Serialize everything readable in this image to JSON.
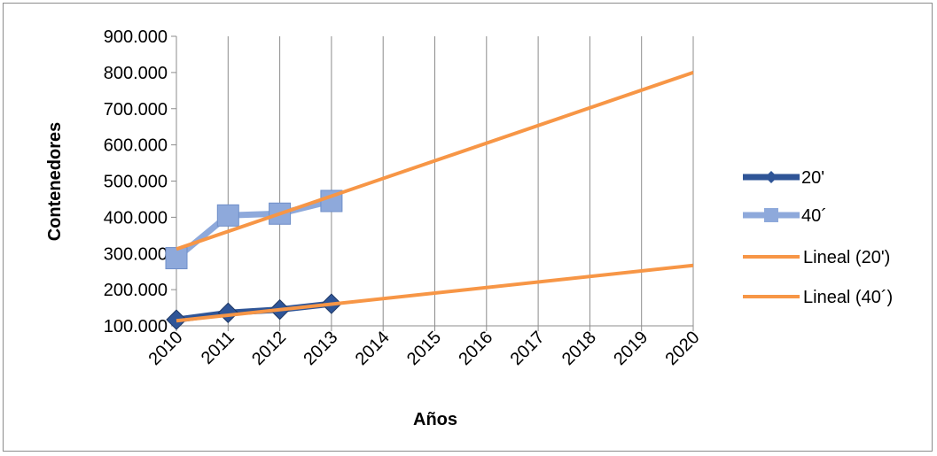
{
  "chart_data": {
    "type": "line",
    "xlabel": "Años",
    "ylabel": "Contenedores",
    "x_categories": [
      "2010",
      "2011",
      "2012",
      "2013",
      "2014",
      "2015",
      "2016",
      "2017",
      "2018",
      "2019",
      "2020"
    ],
    "y_ticks": [
      "100.000",
      "200.000",
      "300.000",
      "400.000",
      "500.000",
      "600.000",
      "700.000",
      "800.000",
      "900.000"
    ],
    "ylim": [
      100000,
      900000
    ],
    "grid": "vertical",
    "legend_position": "right",
    "series": [
      {
        "name": "20'",
        "x": [
          2010,
          2011,
          2012,
          2013
        ],
        "values": [
          117000,
          136000,
          145000,
          161000
        ],
        "color": "#2f5597",
        "marker": "diamond"
      },
      {
        "name": "40´",
        "x": [
          2010,
          2011,
          2012,
          2013
        ],
        "values": [
          287000,
          405000,
          410000,
          445000
        ],
        "color": "#8ea9db",
        "marker": "square"
      },
      {
        "name": "Lineal (20')",
        "trendline": true,
        "x": [
          2010,
          2020
        ],
        "values": [
          114000,
          267000
        ],
        "color": "#f79646"
      },
      {
        "name": "Lineal (40´)",
        "trendline": true,
        "x": [
          2010,
          2020
        ],
        "values": [
          312000,
          800000
        ],
        "color": "#f79646"
      }
    ]
  }
}
